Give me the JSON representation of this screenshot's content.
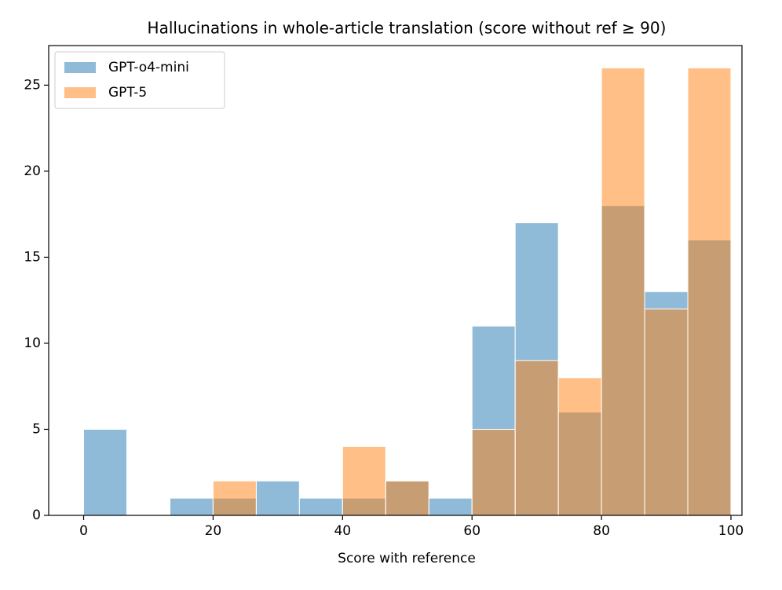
{
  "chart_data": {
    "type": "histogram",
    "title": "Hallucinations in whole-article translation (score without ref ≥ 90)",
    "x_label": "Score with reference",
    "bins": [
      0,
      6.666666666666667,
      13.333333333333334,
      20,
      26.666666666666668,
      33.333333333333336,
      40,
      46.666666666666664,
      53.333333333333336,
      60,
      66.66666666666667,
      73.33333333333333,
      80,
      86.66666666666667,
      93.33333333333333,
      100
    ],
    "series": [
      {
        "name": "GPT-o4-mini",
        "color": "#1f77b4",
        "values": [
          5,
          0,
          1,
          1,
          2,
          1,
          1,
          2,
          1,
          11,
          17,
          6,
          18,
          13,
          16
        ]
      },
      {
        "name": "GPT-5",
        "color": "#ff7f0e",
        "values": [
          0,
          0,
          0,
          2,
          0,
          0,
          4,
          2,
          0,
          5,
          9,
          8,
          26,
          12,
          26
        ]
      }
    ],
    "xlim": [
      -5.4,
      101.7
    ],
    "ylim": [
      0,
      27.3
    ],
    "xticks": [
      0,
      20,
      40,
      60,
      80,
      100
    ],
    "yticks": [
      0,
      5,
      10,
      15,
      20,
      25
    ],
    "legend": "upper-left"
  }
}
